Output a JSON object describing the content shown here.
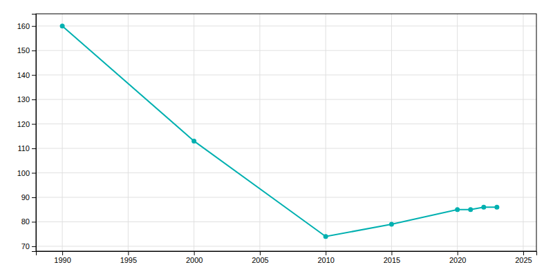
{
  "chart_data": {
    "type": "line",
    "x": [
      1990,
      2000,
      2010,
      2015,
      2020,
      2021,
      2022,
      2023
    ],
    "values": [
      160,
      113,
      74,
      79,
      85,
      85,
      86,
      86
    ],
    "color": "#00b0b0",
    "marker": "circle",
    "xlim": [
      1988,
      2026
    ],
    "ylim": [
      68,
      165
    ],
    "xticks": [
      1990,
      1995,
      2000,
      2005,
      2010,
      2015,
      2020,
      2025
    ],
    "yticks": [
      70,
      80,
      90,
      100,
      110,
      120,
      130,
      140,
      150,
      160
    ],
    "grid": true
  }
}
